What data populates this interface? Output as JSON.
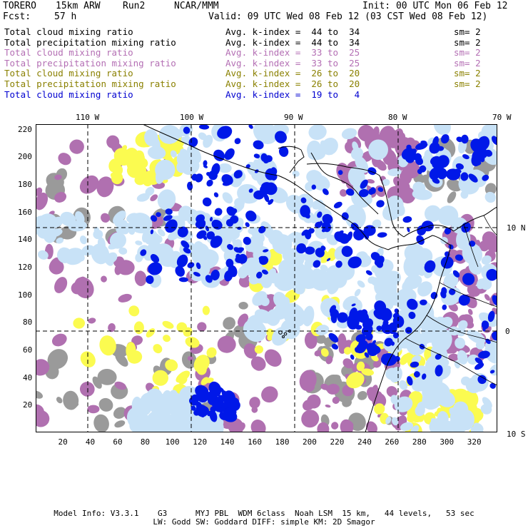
{
  "header": {
    "model": "TORERO",
    "resolution": "15km ARW",
    "run": "Run2",
    "org": "NCAR/MMM",
    "init": "Init: 00 UTC Mon 06 Feb 12",
    "fcst_label": "Fcst:",
    "fcst_value": "57 h",
    "valid": "Valid: 09 UTC Wed 08 Feb 12 (03 CST Wed 08 Feb 12)"
  },
  "legend": [
    {
      "field": "Total cloud mixing ratio",
      "index": "Avg. k-index =  44 to  34",
      "sm": "sm= 2",
      "color": "#000000"
    },
    {
      "field": "Total precipitation mixing ratio",
      "index": "Avg. k-index =  44 to  34",
      "sm": "sm= 2",
      "color": "#000000"
    },
    {
      "field": "Total cloud mixing ratio",
      "index": "Avg. k-index =  33 to  25",
      "sm": "sm= 2",
      "color": "#b46fb4"
    },
    {
      "field": "Total precipitation mixing ratio",
      "index": "Avg. k-index =  33 to  25",
      "sm": "sm= 2",
      "color": "#b46fb4"
    },
    {
      "field": "Total cloud mixing ratio",
      "index": "Avg. k-index =  26 to  20",
      "sm": "sm= 2",
      "color": "#8a8000"
    },
    {
      "field": "Total precipitation mixing ratio",
      "index": "Avg. k-index =  26 to  20",
      "sm": "sm= 2",
      "color": "#8a8000"
    },
    {
      "field": "Total cloud mixing ratio",
      "index": "Avg. k-index =  19 to   4",
      "sm": "",
      "color": "#0000d0"
    }
  ],
  "map": {
    "longitude_labels": [
      "110 W",
      "100 W",
      "90 W",
      "80 W",
      "70 W"
    ],
    "latitude_labels": [
      "10 N",
      "0",
      "10 S"
    ],
    "x_grid_labels": [
      "20",
      "40",
      "60",
      "80",
      "100",
      "120",
      "140",
      "160",
      "180",
      "200",
      "220",
      "240",
      "260",
      "280",
      "300",
      "320"
    ],
    "y_grid_labels": [
      "220",
      "200",
      "180",
      "160",
      "140",
      "120",
      "100",
      "80",
      "60",
      "40",
      "20"
    ],
    "colors": {
      "gray": "#9a9a9a",
      "purple": "#b070b0",
      "yellow": "#fbfb50",
      "light_blue": "#c8e2f7",
      "blue": "#0018e8",
      "coast": "#000000"
    }
  },
  "footer": {
    "line1": "Model Info: V3.3.1    G3      MYJ PBL  WDM 6class  Noah LSM  15 km,   44 levels,   53 sec",
    "line2": "LW: Godd SW: Goddard DIFF: simple KM: 2D Smagor"
  }
}
